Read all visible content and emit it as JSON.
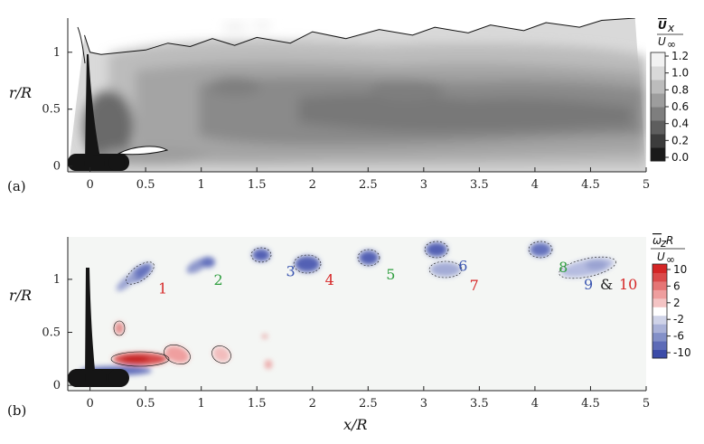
{
  "figure": {
    "panel_a": "(a)",
    "panel_b": "(b)",
    "xlabel": "x/R",
    "ylabel_a": "r/R",
    "ylabel_b": "r/R"
  },
  "chart_data": [
    {
      "type": "heatmap",
      "panel": "(a)",
      "quantity": "mean axial velocity",
      "colorbar_label": "Ū_x / U_∞",
      "xlabel": "",
      "ylabel": "r/R",
      "xlim": [
        -0.2,
        5
      ],
      "ylim": [
        -0.05,
        1.3
      ],
      "x_ticks": [
        0,
        0.5,
        1,
        1.5,
        2,
        2.5,
        3,
        3.5,
        4,
        4.5,
        5
      ],
      "y_ticks": [
        0,
        0.5,
        1
      ],
      "colorbar_ticks": [
        "1.2",
        "1.0",
        "0.8",
        "0.6",
        "0.4",
        "0.2",
        "0.0"
      ],
      "colormap": [
        "#1a1a1a",
        "#3c3c3c",
        "#5e5e5e",
        "#7e7e7e",
        "#9d9d9d",
        "#bcbcbc",
        "#d9d9d9",
        "#f2f2f2"
      ],
      "wake_boundary": [
        [
          -0.05,
          1.15
        ],
        [
          0.0,
          1.0
        ],
        [
          0.1,
          0.98
        ],
        [
          0.3,
          1.0
        ],
        [
          0.5,
          1.02
        ],
        [
          0.7,
          1.08
        ],
        [
          0.9,
          1.05
        ],
        [
          1.1,
          1.12
        ],
        [
          1.3,
          1.06
        ],
        [
          1.5,
          1.13
        ],
        [
          1.8,
          1.08
        ],
        [
          2.0,
          1.18
        ],
        [
          2.3,
          1.12
        ],
        [
          2.6,
          1.2
        ],
        [
          2.9,
          1.15
        ],
        [
          3.1,
          1.22
        ],
        [
          3.4,
          1.17
        ],
        [
          3.6,
          1.24
        ],
        [
          3.9,
          1.19
        ],
        [
          4.1,
          1.26
        ],
        [
          4.4,
          1.22
        ],
        [
          4.6,
          1.28
        ],
        [
          4.9,
          1.3
        ]
      ]
    },
    {
      "type": "heatmap",
      "panel": "(b)",
      "quantity": "mean azimuthal vorticity",
      "colorbar_label": "ω̄_z R / U_∞",
      "xlabel": "x/R",
      "ylabel": "r/R",
      "xlim": [
        -0.2,
        5
      ],
      "ylim": [
        -0.05,
        1.4
      ],
      "x_ticks": [
        0,
        0.5,
        1,
        1.5,
        2,
        2.5,
        3,
        3.5,
        4,
        4.5,
        5
      ],
      "y_ticks": [
        0,
        0.5,
        1
      ],
      "colorbar_ticks": [
        "10",
        "6",
        "2",
        "-2",
        "-6",
        "-10"
      ],
      "colormap": [
        "#3b4ba8",
        "#5d6bb7",
        "#8390c8",
        "#aab2d8",
        "#cfd3e8",
        "#ffffff",
        "#f4c4c4",
        "#ee9e9e",
        "#e57575",
        "#da4a4a",
        "#d42525"
      ],
      "vortices": [
        {
          "label": "1",
          "x": 0.45,
          "r": 0.92,
          "color": "#d62828"
        },
        {
          "label": "2",
          "x": 0.95,
          "r": 1.0,
          "color": "#2e9e3e"
        },
        {
          "label": "3",
          "x": 1.6,
          "r": 1.08,
          "color": "#3a55b0"
        },
        {
          "label": "4",
          "x": 1.95,
          "r": 1.0,
          "color": "#d62828"
        },
        {
          "label": "5",
          "x": 2.5,
          "r": 1.05,
          "color": "#2e9e3e"
        },
        {
          "label": "6",
          "x": 3.15,
          "r": 1.13,
          "color": "#3a55b0"
        },
        {
          "label": "7",
          "x": 3.25,
          "r": 0.95,
          "color": "#d62828"
        },
        {
          "label": "8",
          "x": 4.05,
          "r": 1.12,
          "color": "#2e9e3e"
        }
      ],
      "merged_label": {
        "a": "9",
        "amp": "&",
        "b": "10",
        "x": 4.6,
        "r": 0.92
      }
    }
  ]
}
